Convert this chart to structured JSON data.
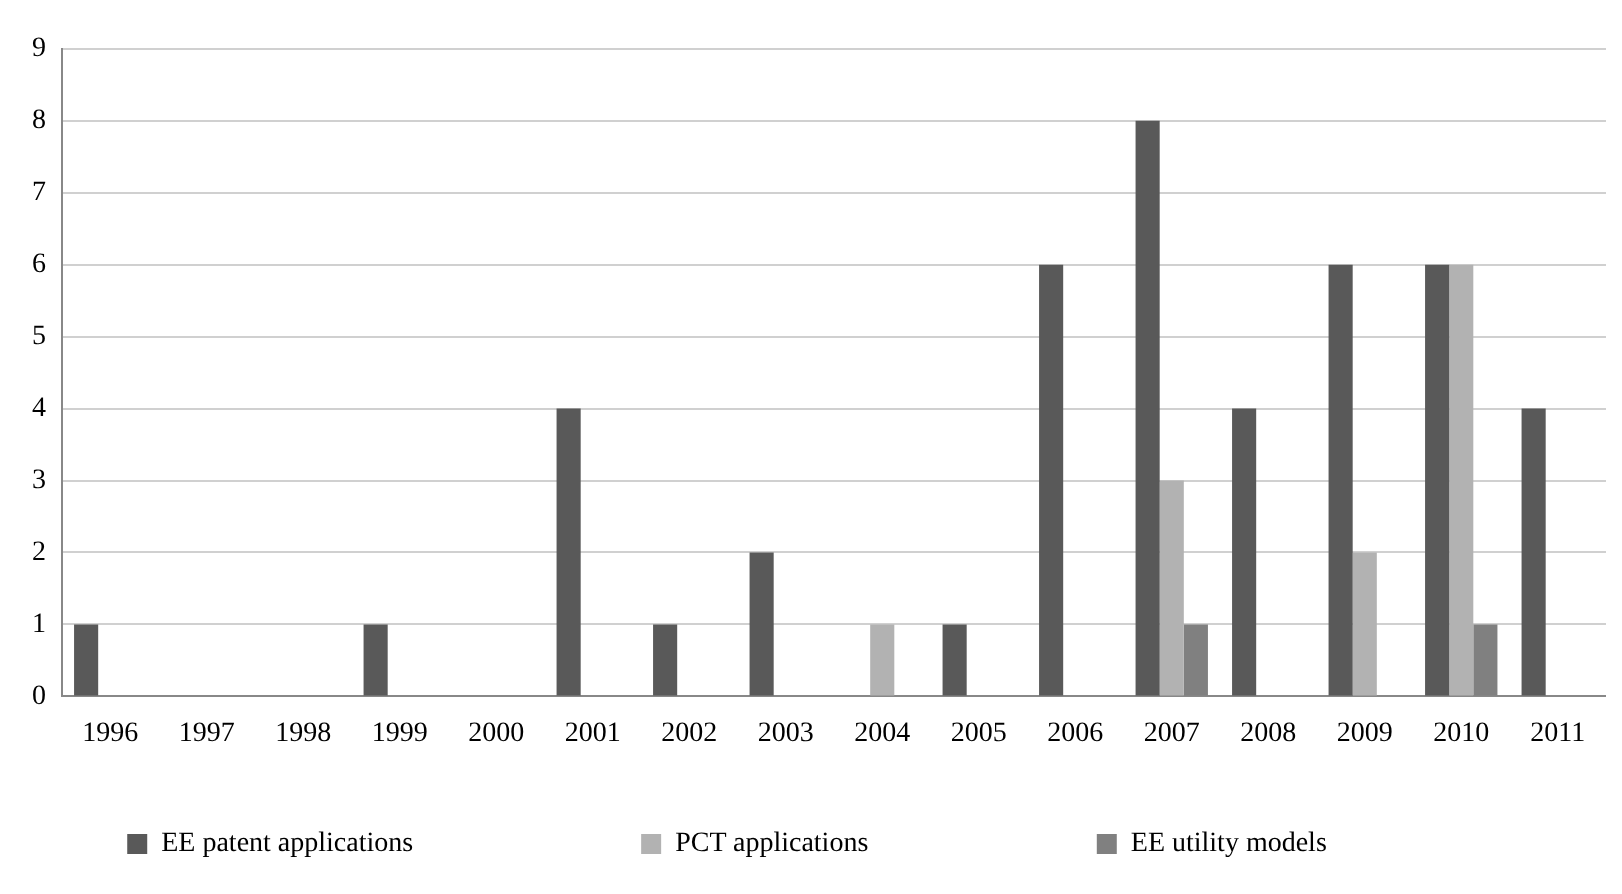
{
  "chart_data": {
    "type": "bar",
    "categories": [
      "1996",
      "1997",
      "1998",
      "1999",
      "2000",
      "2001",
      "2002",
      "2003",
      "2004",
      "2005",
      "2006",
      "2007",
      "2008",
      "2009",
      "2010",
      "2011"
    ],
    "series": [
      {
        "name": "EE patent applications",
        "color": "#595959",
        "values": [
          1,
          0,
          0,
          1,
          0,
          4,
          1,
          2,
          0,
          1,
          6,
          8,
          4,
          6,
          6,
          4
        ]
      },
      {
        "name": "PCT applications",
        "color": "#b2b2b2",
        "values": [
          0,
          0,
          0,
          0,
          0,
          0,
          0,
          0,
          1,
          0,
          0,
          3,
          0,
          2,
          6,
          0
        ]
      },
      {
        "name": "EE utility models",
        "color": "#808080",
        "values": [
          0,
          0,
          0,
          0,
          0,
          0,
          0,
          0,
          0,
          0,
          0,
          1,
          0,
          0,
          1,
          0
        ]
      }
    ],
    "ylim": [
      0,
      9
    ],
    "yticks": [
      0,
      1,
      2,
      3,
      4,
      5,
      6,
      7,
      8,
      9
    ],
    "grid": "y",
    "legend": "bottom"
  }
}
